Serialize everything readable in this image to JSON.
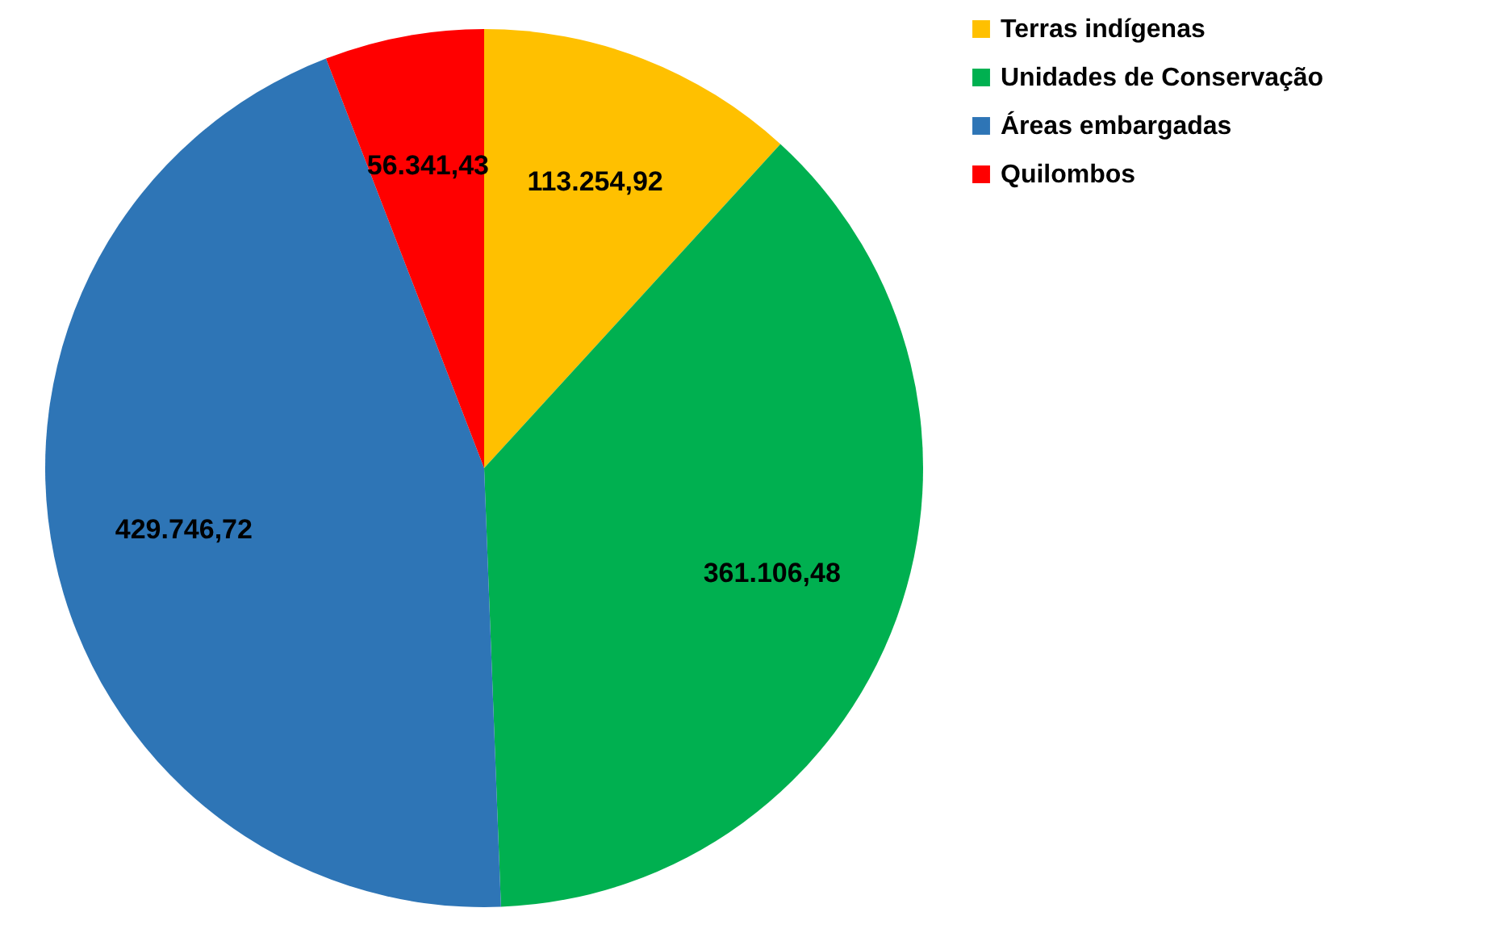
{
  "chart_data": {
    "type": "pie",
    "categories": [
      "Terras indígenas",
      "Unidades de Conservação",
      "Áreas embargadas",
      "Quilombos"
    ],
    "values": [
      113254.92,
      361106.48,
      429746.72,
      56341.43
    ],
    "value_labels": [
      "113.254,92",
      "361.106,48",
      "429.746,72",
      "56.341,43"
    ],
    "colors": [
      "#ffc000",
      "#00b050",
      "#2e75b6",
      "#ff0000"
    ],
    "legend": "right"
  }
}
